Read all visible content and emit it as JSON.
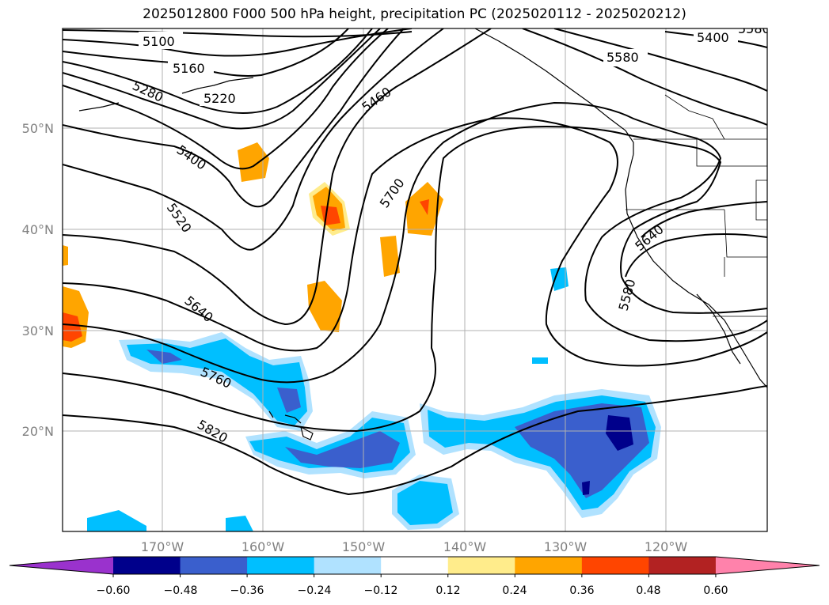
{
  "title": "2025012800 F000 500 hPa height, precipitation PC (2025020112 - 2025020212)",
  "map": {
    "lat_labels": [
      "50°N",
      "40°N",
      "30°N",
      "20°N"
    ],
    "lon_labels": [
      "170°W",
      "160°W",
      "150°W",
      "140°W",
      "130°W",
      "120°W"
    ],
    "contour_labels": [
      "5100",
      "5160",
      "5220",
      "5280",
      "5400",
      "5460",
      "5520",
      "5580",
      "5640",
      "5700",
      "5760",
      "5820",
      "5400",
      "5580",
      "5640",
      "5580"
    ]
  },
  "colorbar": {
    "tick_labels": [
      "−0.60",
      "−0.48",
      "−0.36",
      "−0.24",
      "−0.12",
      "0.12",
      "0.24",
      "0.36",
      "0.48",
      "0.60"
    ],
    "colors": [
      "#9a32cd",
      "#00008b",
      "#3a5fcd",
      "#00bfff",
      "#b0e2ff",
      "#ffffff",
      "#ffec8b",
      "#ffa500",
      "#ff4500",
      "#b22222",
      "#ff82ab"
    ]
  }
}
